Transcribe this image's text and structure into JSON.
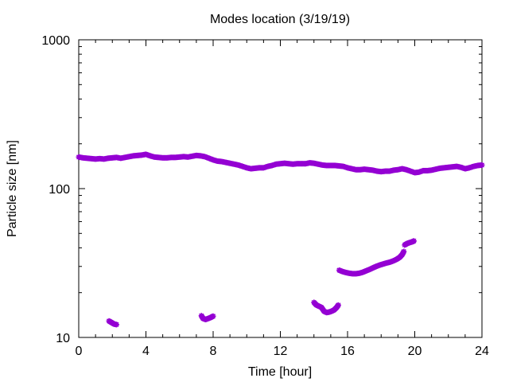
{
  "chart_data": {
    "type": "scatter",
    "title": "Modes location (3/19/19)",
    "xlabel": "Time [hour]",
    "ylabel": "Particle size [nm]",
    "xlim": [
      0,
      24
    ],
    "ylim": [
      10,
      1000
    ],
    "yscale": "log",
    "grid": false,
    "legend": "none",
    "x_ticks": [
      0,
      4,
      8,
      12,
      16,
      20,
      24
    ],
    "x_tick_labels": [
      "0",
      "4",
      "8",
      "12",
      "16",
      "20",
      "24"
    ],
    "y_ticks": [
      10,
      100,
      1000
    ],
    "y_tick_labels": [
      "10",
      "100",
      "1000"
    ],
    "marker": "star",
    "marker_color": "#9400d3",
    "series": [
      {
        "values": [
          [
            0.0,
            163
          ],
          [
            0.25,
            161
          ],
          [
            0.5,
            160
          ],
          [
            0.75,
            159
          ],
          [
            1.0,
            158
          ],
          [
            1.25,
            159
          ],
          [
            1.5,
            158
          ],
          [
            1.75,
            160
          ],
          [
            2.0,
            161
          ],
          [
            2.25,
            162
          ],
          [
            2.5,
            160
          ],
          [
            2.75,
            162
          ],
          [
            3.0,
            164
          ],
          [
            3.25,
            166
          ],
          [
            3.5,
            167
          ],
          [
            3.75,
            168
          ],
          [
            4.0,
            170
          ],
          [
            4.25,
            166
          ],
          [
            4.5,
            163
          ],
          [
            4.75,
            162
          ],
          [
            5.0,
            161
          ],
          [
            5.25,
            161
          ],
          [
            5.5,
            162
          ],
          [
            5.75,
            162
          ],
          [
            6.0,
            163
          ],
          [
            6.25,
            164
          ],
          [
            6.5,
            163
          ],
          [
            6.75,
            165
          ],
          [
            7.0,
            167
          ],
          [
            7.25,
            166
          ],
          [
            7.5,
            164
          ],
          [
            7.75,
            160
          ],
          [
            8.0,
            156
          ],
          [
            8.25,
            153
          ],
          [
            8.5,
            152
          ],
          [
            8.75,
            150
          ],
          [
            9.0,
            148
          ],
          [
            9.25,
            146
          ],
          [
            9.5,
            144
          ],
          [
            9.75,
            141
          ],
          [
            10.0,
            138
          ],
          [
            10.25,
            136
          ],
          [
            10.5,
            137
          ],
          [
            10.75,
            138
          ],
          [
            11.0,
            138
          ],
          [
            11.25,
            141
          ],
          [
            11.5,
            143
          ],
          [
            11.75,
            146
          ],
          [
            12.0,
            147
          ],
          [
            12.25,
            148
          ],
          [
            12.5,
            147
          ],
          [
            12.75,
            146
          ],
          [
            13.0,
            147
          ],
          [
            13.25,
            147
          ],
          [
            13.5,
            147
          ],
          [
            13.75,
            149
          ],
          [
            14.0,
            148
          ],
          [
            14.25,
            146
          ],
          [
            14.5,
            144
          ],
          [
            14.75,
            143
          ],
          [
            15.0,
            143
          ],
          [
            15.25,
            143
          ],
          [
            15.5,
            142
          ],
          [
            15.75,
            141
          ],
          [
            16.0,
            138
          ],
          [
            16.25,
            136
          ],
          [
            16.5,
            134
          ],
          [
            16.75,
            134
          ],
          [
            17.0,
            135
          ],
          [
            17.25,
            134
          ],
          [
            17.5,
            133
          ],
          [
            17.75,
            131
          ],
          [
            18.0,
            130
          ],
          [
            18.25,
            131
          ],
          [
            18.5,
            131
          ],
          [
            18.75,
            133
          ],
          [
            19.0,
            134
          ],
          [
            19.25,
            136
          ],
          [
            19.5,
            134
          ],
          [
            19.75,
            131
          ],
          [
            20.0,
            128
          ],
          [
            20.25,
            129
          ],
          [
            20.5,
            132
          ],
          [
            20.75,
            132
          ],
          [
            21.0,
            133
          ],
          [
            21.25,
            135
          ],
          [
            21.5,
            137
          ],
          [
            21.75,
            138
          ],
          [
            22.0,
            139
          ],
          [
            22.25,
            140
          ],
          [
            22.5,
            141
          ],
          [
            22.75,
            139
          ],
          [
            23.0,
            136
          ],
          [
            23.25,
            138
          ],
          [
            23.5,
            141
          ],
          [
            23.75,
            143
          ],
          [
            24.0,
            144
          ]
        ]
      },
      {
        "values": [
          [
            1.8,
            12.9
          ],
          [
            1.95,
            12.6
          ],
          [
            2.1,
            12.3
          ],
          [
            2.25,
            12.2
          ]
        ]
      },
      {
        "values": [
          [
            7.3,
            14.0
          ],
          [
            7.4,
            13.4
          ],
          [
            7.55,
            13.2
          ],
          [
            7.7,
            13.4
          ],
          [
            7.85,
            13.6
          ],
          [
            8.0,
            13.9
          ]
        ]
      },
      {
        "values": [
          [
            14.0,
            17.2
          ],
          [
            14.15,
            16.5
          ],
          [
            14.3,
            16.2
          ],
          [
            14.45,
            15.9
          ],
          [
            14.6,
            15.0
          ],
          [
            14.75,
            14.7
          ],
          [
            14.9,
            14.8
          ],
          [
            15.05,
            15.0
          ],
          [
            15.2,
            15.3
          ],
          [
            15.35,
            15.9
          ],
          [
            15.45,
            16.5
          ]
        ]
      },
      {
        "values": [
          [
            15.5,
            28.3
          ],
          [
            15.7,
            27.7
          ],
          [
            15.9,
            27.3
          ],
          [
            16.1,
            27.0
          ],
          [
            16.3,
            26.8
          ],
          [
            16.5,
            26.8
          ],
          [
            16.7,
            27.0
          ],
          [
            16.9,
            27.4
          ],
          [
            17.1,
            28.0
          ],
          [
            17.3,
            28.6
          ],
          [
            17.5,
            29.3
          ],
          [
            17.7,
            30.0
          ],
          [
            17.9,
            30.6
          ],
          [
            18.1,
            31.1
          ],
          [
            18.3,
            31.6
          ],
          [
            18.5,
            32.0
          ],
          [
            18.7,
            32.6
          ],
          [
            18.9,
            33.4
          ],
          [
            19.1,
            34.5
          ],
          [
            19.25,
            36.0
          ],
          [
            19.35,
            37.8
          ]
        ]
      },
      {
        "values": [
          [
            19.4,
            41.8
          ],
          [
            19.55,
            42.8
          ],
          [
            19.7,
            43.4
          ],
          [
            19.85,
            43.9
          ],
          [
            19.95,
            44.5
          ]
        ]
      }
    ]
  }
}
